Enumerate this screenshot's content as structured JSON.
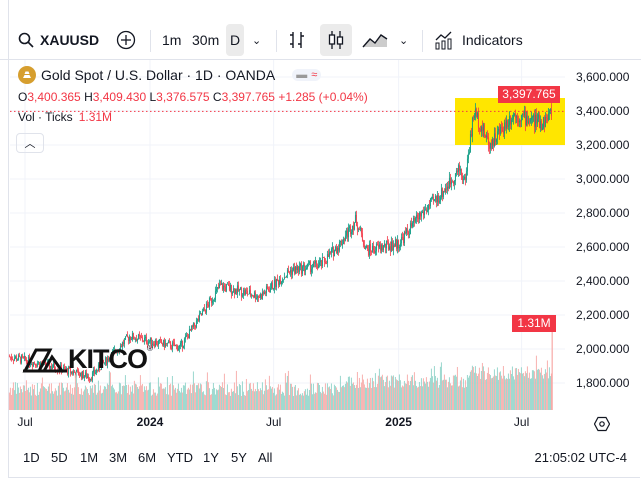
{
  "toolbar": {
    "symbol": "XAUUSD",
    "intervals": [
      "1m",
      "30m",
      "D"
    ],
    "indicators": "Indicators"
  },
  "legend": {
    "title": "Gold Spot / U.S. Dollar · 1D · OANDA",
    "o_label": "O",
    "o": "3,400.365",
    "h_label": "H",
    "h": "3,409.430",
    "l_label": "L",
    "l": "3,376.575",
    "c_label": "C",
    "c": "3,397.765",
    "change": "+1.285 (+0.04%)",
    "vol_label": "Vol · Ticks",
    "vol": "1.31M"
  },
  "price_label": "3,397.765",
  "volume_label": "1.31M",
  "logo": "KITCO",
  "ranges": [
    "1D",
    "5D",
    "1M",
    "3M",
    "6M",
    "YTD",
    "1Y",
    "5Y",
    "All"
  ],
  "clock": "21:05:02 UTC-4",
  "colors": {
    "up": "#089981",
    "down": "#f23645",
    "highlight": "#ffe600"
  },
  "chart_data": {
    "type": "candlestick",
    "ylim": [
      1650,
      3700
    ],
    "y_ticks": [
      "3,600.000",
      "3,400.000",
      "3,200.000",
      "3,000.000",
      "2,800.000",
      "2,600.000",
      "2,400.000",
      "2,200.000",
      "2,000.000",
      "1,800.000"
    ],
    "y_tick_values": [
      3600,
      3400,
      3200,
      3000,
      2800,
      2600,
      2400,
      2200,
      2000,
      1800
    ],
    "x_ticks": [
      {
        "label": "Jul",
        "date": "2023-07-01"
      },
      {
        "label": "2024",
        "date": "2024-01-01"
      },
      {
        "label": "Jul",
        "date": "2024-07-01"
      },
      {
        "label": "2025",
        "date": "2025-01-01"
      },
      {
        "label": "Jul",
        "date": "2025-07-01"
      }
    ],
    "closes": [
      [
        "2023-06-08",
        1955
      ],
      [
        "2023-08-07",
        1900
      ],
      [
        "2023-10-05",
        1835
      ],
      [
        "2023-12-02",
        2075
      ],
      [
        "2024-01-01",
        2045
      ],
      [
        "2024-02-14",
        2010
      ],
      [
        "2024-03-15",
        2190
      ],
      [
        "2024-04-13",
        2370
      ],
      [
        "2024-06-11",
        2310
      ],
      [
        "2024-07-25",
        2460
      ],
      [
        "2024-09-08",
        2495
      ],
      [
        "2024-10-07",
        2620
      ],
      [
        "2024-10-30",
        2760
      ],
      [
        "2024-11-15",
        2580
      ],
      [
        "2025-01-01",
        2620
      ],
      [
        "2025-01-31",
        2780
      ],
      [
        "2025-03-02",
        2900
      ],
      [
        "2025-04-01",
        3060
      ],
      [
        "2025-04-08",
        2980
      ],
      [
        "2025-04-22",
        3400
      ],
      [
        "2025-05-15",
        3200
      ],
      [
        "2025-06-18",
        3380
      ],
      [
        "2025-08-01",
        3330
      ],
      [
        "2025-08-15",
        3398
      ]
    ],
    "last_volume": "1.31M"
  }
}
